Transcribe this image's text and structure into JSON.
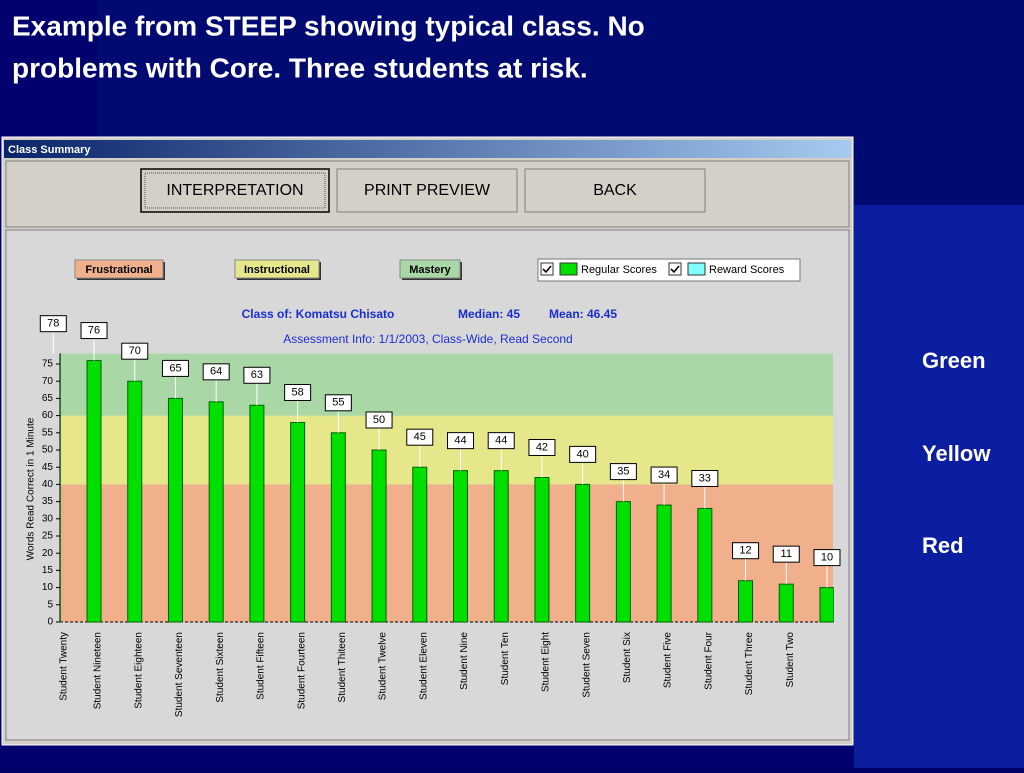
{
  "slide": {
    "title_line1": "Example from STEEP showing typical class. No",
    "title_line2": "problems with Core.  Three students at risk.",
    "notes": [
      "Green",
      "Yellow",
      "Red"
    ]
  },
  "window": {
    "title": "Class Summary",
    "buttons": [
      "INTERPRETATION",
      "PRINT PREVIEW",
      "BACK"
    ]
  },
  "chart_data": {
    "type": "bar",
    "title": "Class of: Komatsu Chisato",
    "median": "Median: 45",
    "mean": "Mean: 46.45",
    "subtitle": "Assessment Info: 1/1/2003, Class-Wide, Read Second",
    "y_label": "Words Read Correct in 1 Minute",
    "levels": [
      {
        "name": "Frustrational",
        "color": "#f0b08c",
        "from": 0,
        "to": 40
      },
      {
        "name": "Instructional",
        "color": "#e6e68a",
        "from": 40,
        "to": 60
      },
      {
        "name": "Mastery",
        "color": "#a9d8a6",
        "from": 60,
        "to": 78
      }
    ],
    "legend": [
      {
        "name": "Regular Scores",
        "color": "#00e000"
      },
      {
        "name": "Reward Scores",
        "color": "#80ffff"
      }
    ],
    "categories": [
      "Student Twenty",
      "Student Nineteen",
      "Student Eighteen",
      "Student Seventeen",
      "Student Sixteen",
      "Student Fifteen",
      "Student Fourteen",
      "Student Thiteen",
      "Student Twelve",
      "Student Eleven",
      "Student Nine",
      "Student Ten",
      "Student Eight",
      "Student Seven",
      "Student Six",
      "Student Five",
      "Student Four",
      "Student Three",
      "Student Two",
      null
    ],
    "values": [
      78,
      76,
      70,
      65,
      64,
      63,
      58,
      55,
      50,
      45,
      44,
      44,
      42,
      40,
      35,
      34,
      33,
      12,
      11,
      10
    ],
    "color": "#00e000",
    "ylim": [
      0,
      78
    ],
    "yticks": [
      0,
      5,
      10,
      15,
      20,
      25,
      30,
      35,
      40,
      45,
      50,
      55,
      60,
      65,
      70,
      75
    ]
  }
}
